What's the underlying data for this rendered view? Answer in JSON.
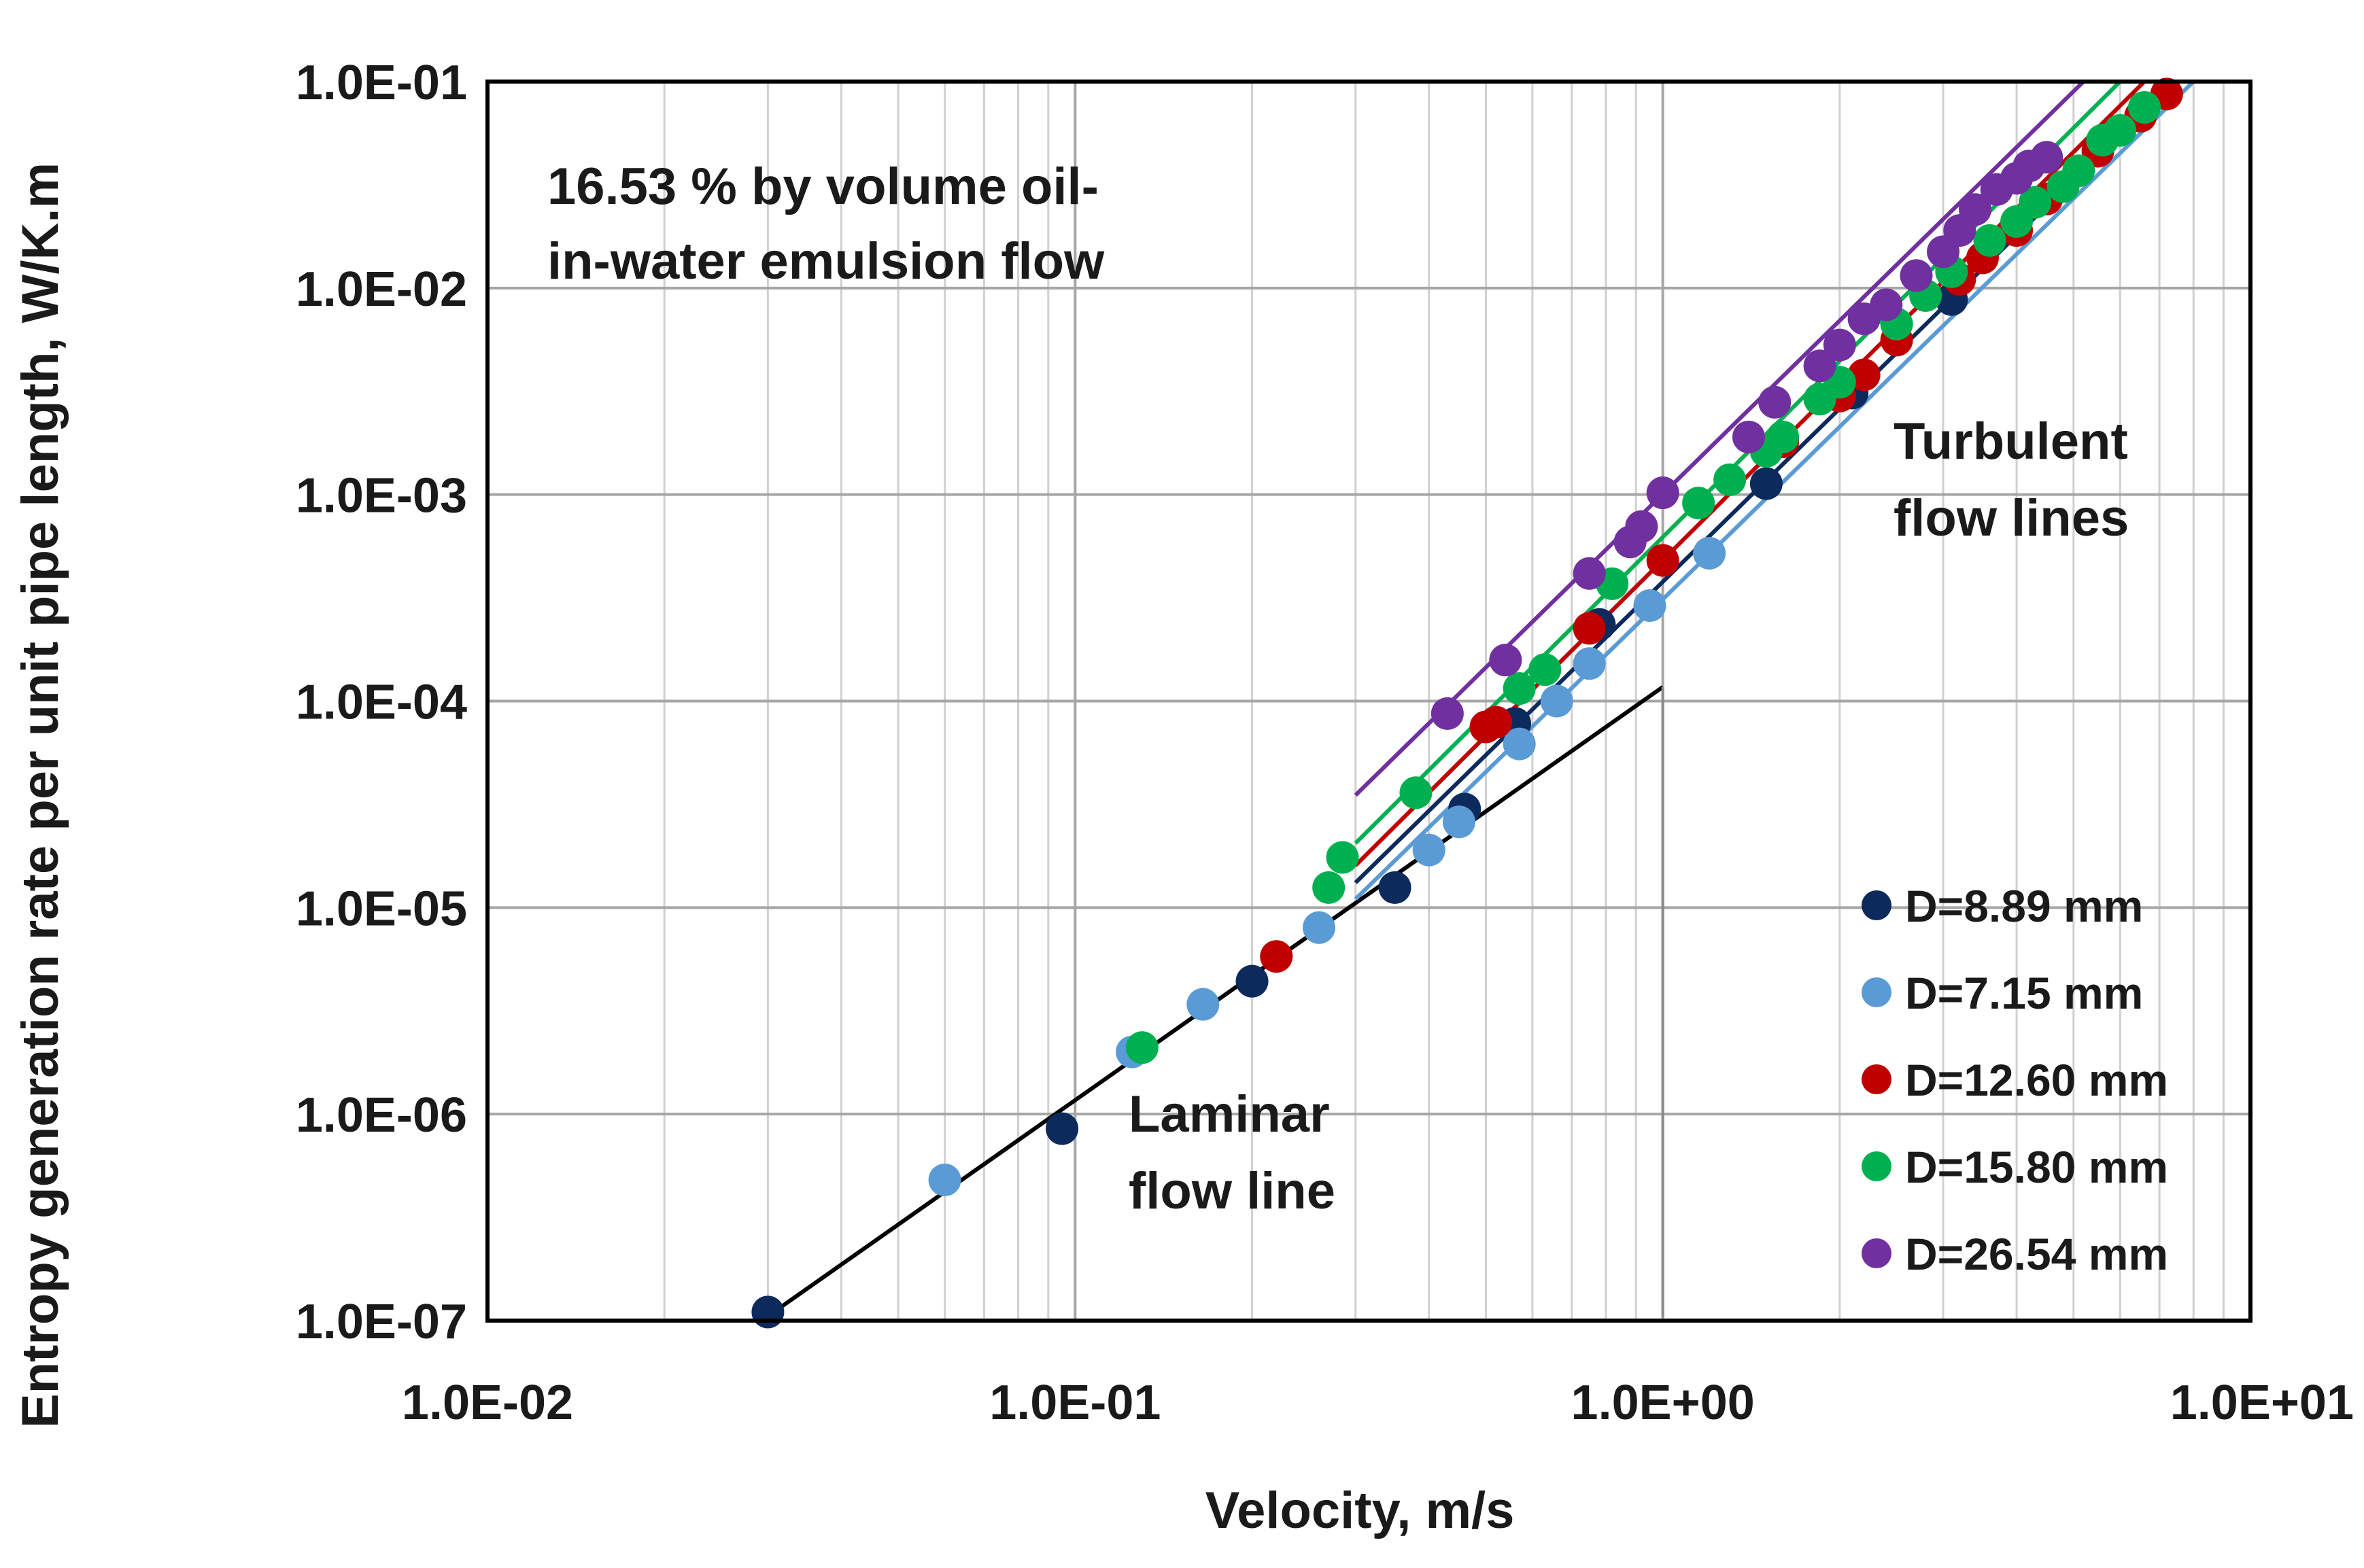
{
  "chart_data": {
    "type": "scatter",
    "scale": {
      "x": "log",
      "y": "log"
    },
    "xlabel": "Velocity, m/s",
    "ylabel": "Entropy generation rate per unit pipe length, W/K.m",
    "xlim": [
      0.01,
      10
    ],
    "ylim": [
      1e-07,
      0.1
    ],
    "grid": true,
    "legend_position": "bottom-right",
    "x_ticks": [
      {
        "value": 0.01,
        "label": "1.0E-02"
      },
      {
        "value": 0.1,
        "label": "1.0E-01"
      },
      {
        "value": 1,
        "label": "1.0E+00"
      },
      {
        "value": 10,
        "label": "1.0E+01"
      }
    ],
    "y_ticks": [
      {
        "value": 0.1,
        "label": "1.0E-01"
      },
      {
        "value": 0.01,
        "label": "1.0E-02"
      },
      {
        "value": 0.001,
        "label": "1.0E-03"
      },
      {
        "value": 0.0001,
        "label": "1.0E-04"
      },
      {
        "value": 1e-05,
        "label": "1.0E-05"
      },
      {
        "value": 1e-06,
        "label": "1.0E-06"
      },
      {
        "value": 1e-07,
        "label": "1.0E-07"
      }
    ],
    "annotations": {
      "condition_line1": "16.53 % by volume oil-",
      "condition_line2": "in-water emulsion flow",
      "turbulent_line1": "Turbulent",
      "turbulent_line2": "flow lines",
      "laminar_line1": "Laminar",
      "laminar_line2": "flow line"
    },
    "laminar_line": {
      "x": [
        0.03,
        1.0
      ],
      "y": [
        1.05e-07,
        0.000117
      ],
      "color": "#000000"
    },
    "series": [
      {
        "name": "D=8.89 mm",
        "color": "#0d2a5c",
        "points": [
          [
            0.03,
            1.1e-07
          ],
          [
            0.095,
            8.5e-07
          ],
          [
            0.2,
            4.4e-06
          ],
          [
            0.35,
            1.25e-05
          ],
          [
            0.46,
            3e-05
          ],
          [
            0.56,
            7.8e-05
          ],
          [
            0.78,
            0.000235
          ],
          [
            1.5,
            0.00113
          ],
          [
            2.1,
            0.0031
          ],
          [
            3.1,
            0.0088
          ]
        ],
        "fit_line": {
          "x": [
            0.3,
            7.4
          ],
          "y": [
            1.32e-05,
            0.1
          ]
        }
      },
      {
        "name": "D=7.15 mm",
        "color": "#5b9bd5",
        "points": [
          [
            0.06,
            4.8e-07
          ],
          [
            0.125,
            2e-06
          ],
          [
            0.165,
            3.4e-06
          ],
          [
            0.26,
            8e-06
          ],
          [
            0.4,
            1.9e-05
          ],
          [
            0.45,
            2.6e-05
          ],
          [
            0.57,
            6.2e-05
          ],
          [
            0.66,
            0.0001
          ],
          [
            0.75,
            0.000152
          ],
          [
            0.95,
            0.00029
          ],
          [
            1.2,
            0.00052
          ]
        ],
        "fit_line": {
          "x": [
            0.3,
            8.0
          ],
          "y": [
            1.1e-05,
            0.1
          ]
        }
      },
      {
        "name": "D=12.60 mm",
        "color": "#c00000",
        "points": [
          [
            0.22,
            5.8e-06
          ],
          [
            0.5,
            7.5e-05
          ],
          [
            0.52,
            7.9e-05
          ],
          [
            0.75,
            0.000225
          ],
          [
            1.0,
            0.00048
          ],
          [
            1.6,
            0.0018
          ],
          [
            2.0,
            0.003
          ],
          [
            2.2,
            0.0038
          ],
          [
            2.5,
            0.0056
          ],
          [
            3.2,
            0.011
          ],
          [
            3.5,
            0.014
          ],
          [
            4.0,
            0.019
          ],
          [
            4.5,
            0.027
          ],
          [
            5.5,
            0.046
          ],
          [
            6.5,
            0.068
          ],
          [
            7.2,
            0.087
          ]
        ],
        "fit_line": {
          "x": [
            0.3,
            6.6
          ],
          "y": [
            1.6e-05,
            0.1
          ]
        }
      },
      {
        "name": "D=15.80 mm",
        "color": "#00b050",
        "points": [
          [
            0.13,
            2.1e-06
          ],
          [
            0.27,
            1.25e-05
          ],
          [
            0.285,
            1.75e-05
          ],
          [
            0.38,
            3.6e-05
          ],
          [
            0.57,
            0.000115
          ],
          [
            0.63,
            0.000142
          ],
          [
            0.82,
            0.00037
          ],
          [
            1.15,
            0.00091
          ],
          [
            1.3,
            0.00118
          ],
          [
            1.5,
            0.00162
          ],
          [
            1.6,
            0.0019
          ],
          [
            1.85,
            0.0029
          ],
          [
            2.0,
            0.0035
          ],
          [
            2.5,
            0.0067
          ],
          [
            2.8,
            0.0092
          ],
          [
            3.1,
            0.012
          ],
          [
            3.6,
            0.017
          ],
          [
            4.0,
            0.021
          ],
          [
            4.3,
            0.026
          ],
          [
            4.8,
            0.031
          ],
          [
            5.1,
            0.037
          ],
          [
            5.6,
            0.052
          ],
          [
            6.0,
            0.058
          ],
          [
            6.6,
            0.075
          ]
        ],
        "fit_line": {
          "x": [
            0.3,
            6.0
          ],
          "y": [
            2.05e-05,
            0.1
          ]
        }
      },
      {
        "name": "D=26.54 mm",
        "color": "#7030a0",
        "points": [
          [
            0.43,
            8.7e-05
          ],
          [
            0.54,
            0.000158
          ],
          [
            0.75,
            0.000415
          ],
          [
            0.88,
            0.00059
          ],
          [
            0.92,
            0.0007
          ],
          [
            1.0,
            0.00102
          ],
          [
            1.4,
            0.0019
          ],
          [
            1.55,
            0.0028
          ],
          [
            1.85,
            0.0042
          ],
          [
            2.0,
            0.0053
          ],
          [
            2.2,
            0.0071
          ],
          [
            2.4,
            0.0083
          ],
          [
            2.7,
            0.0115
          ],
          [
            3.0,
            0.015
          ],
          [
            3.2,
            0.019
          ],
          [
            3.4,
            0.024
          ],
          [
            3.7,
            0.03
          ],
          [
            4.0,
            0.034
          ],
          [
            4.2,
            0.039
          ],
          [
            4.5,
            0.043
          ]
        ],
        "fit_line": {
          "x": [
            0.3,
            5.2
          ],
          "y": [
            3.5e-05,
            0.1
          ]
        }
      }
    ]
  }
}
